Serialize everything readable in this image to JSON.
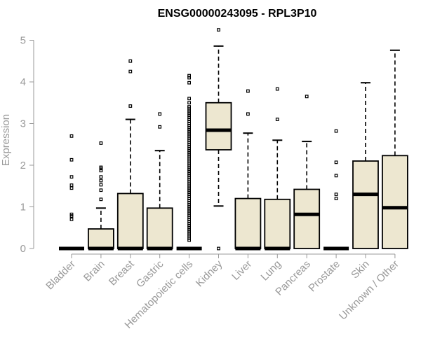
{
  "chart_data": {
    "type": "boxplot",
    "title": "ENSG00000243095 - RPL3P10",
    "xlabel": "",
    "ylabel": "Expression",
    "ylim": [
      0,
      5
    ],
    "yticks": [
      "0",
      "1",
      "2",
      "3",
      "4",
      "5"
    ],
    "grid": false,
    "box_color": "#ede7d0",
    "categories": [
      "Bladder",
      "Brain",
      "Breast",
      "Gastric",
      "Hematopoietic cells",
      "Kidney",
      "Liver",
      "Lung",
      "Pancreas",
      "Prostate",
      "Skin",
      "Unknown / Other"
    ],
    "boxes": [
      {
        "name": "Bladder",
        "q1": 0,
        "median": 0,
        "q3": 0,
        "whisker_low": 0,
        "whisker_high": 0,
        "outliers": [
          0.7,
          0.78,
          0.82,
          1.45,
          1.52,
          1.72,
          2.13,
          2.7
        ]
      },
      {
        "name": "Brain",
        "q1": 0,
        "median": 0,
        "q3": 0.47,
        "whisker_low": 0,
        "whisker_high": 0.97,
        "outliers": [
          1.18,
          1.4,
          1.53,
          1.63,
          1.72,
          1.87,
          1.92,
          1.95,
          2.53
        ]
      },
      {
        "name": "Breast",
        "q1": 0,
        "median": 0,
        "q3": 1.32,
        "whisker_low": 0,
        "whisker_high": 3.1,
        "outliers": [
          3.42,
          4.25,
          4.5
        ]
      },
      {
        "name": "Gastric",
        "q1": 0,
        "median": 0,
        "q3": 0.97,
        "whisker_low": 0,
        "whisker_high": 2.35,
        "outliers": [
          2.92,
          3.23
        ]
      },
      {
        "name": "Hematopoietic cells",
        "q1": 0,
        "median": 0,
        "q3": 0,
        "whisker_low": 0,
        "whisker_high": 0,
        "outliers_range": [
          0.2,
          4.15
        ],
        "outliers": [
          4.15,
          4.1,
          3.98,
          3.6,
          3.5,
          3.4
        ]
      },
      {
        "name": "Kidney",
        "q1": 2.37,
        "median": 2.84,
        "q3": 3.5,
        "whisker_low": 1.02,
        "whisker_high": 4.86,
        "outliers": [
          0,
          5.25
        ]
      },
      {
        "name": "Liver",
        "q1": 0,
        "median": 0,
        "q3": 1.2,
        "whisker_low": 0,
        "whisker_high": 2.77,
        "outliers": [
          3.23,
          3.78
        ]
      },
      {
        "name": "Lung",
        "q1": 0,
        "median": 0,
        "q3": 1.18,
        "whisker_low": 0,
        "whisker_high": 2.6,
        "outliers": [
          3.1,
          3.83
        ]
      },
      {
        "name": "Pancreas",
        "q1": 0,
        "median": 0.82,
        "q3": 1.42,
        "whisker_low": 0,
        "whisker_high": 2.57,
        "outliers": [
          3.65
        ]
      },
      {
        "name": "Prostate",
        "q1": 0,
        "median": 0,
        "q3": 0,
        "whisker_low": 0,
        "whisker_high": 0,
        "outliers": [
          1.2,
          1.3,
          1.75,
          2.07,
          2.82
        ]
      },
      {
        "name": "Skin",
        "q1": 0,
        "median": 1.3,
        "q3": 2.1,
        "whisker_low": 0,
        "whisker_high": 3.98,
        "outliers": []
      },
      {
        "name": "Unknown / Other",
        "q1": 0,
        "median": 0.98,
        "q3": 2.23,
        "whisker_low": 0,
        "whisker_high": 4.76,
        "outliers": []
      }
    ]
  }
}
